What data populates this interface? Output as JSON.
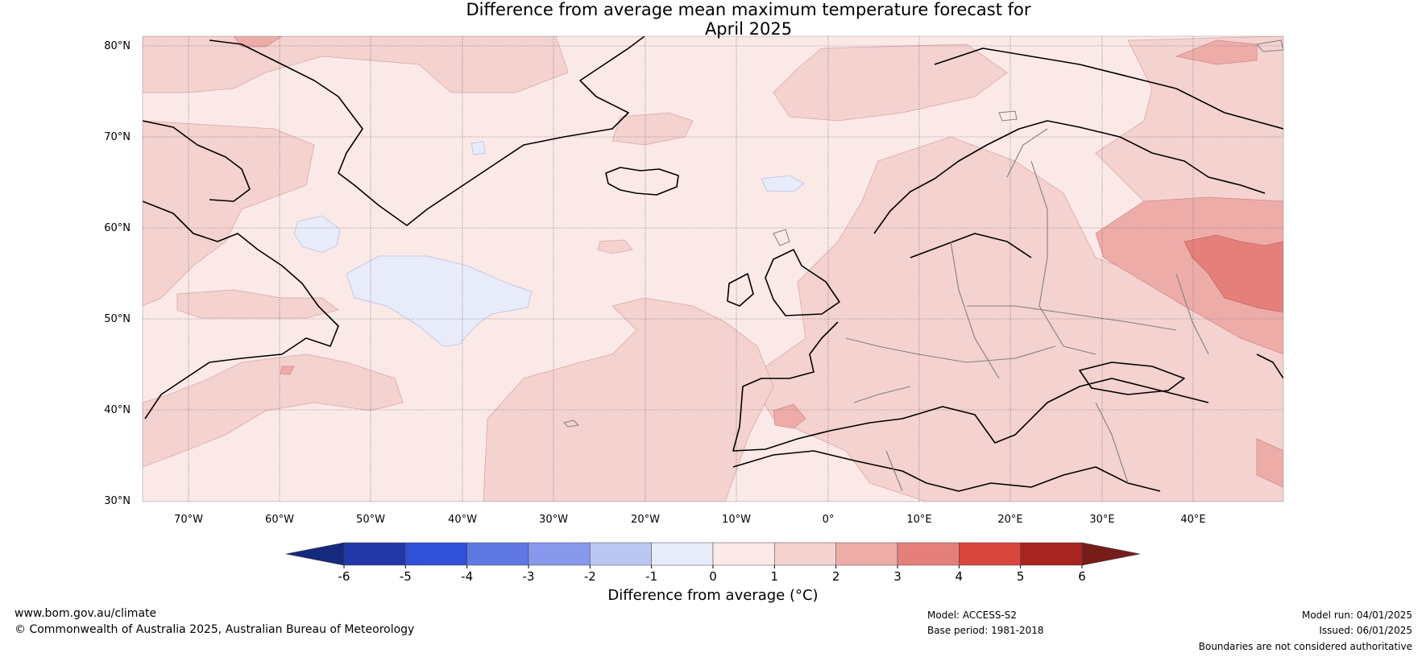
{
  "title_line1": "Difference from average mean maximum temperature forecast for",
  "title_line2": "April 2025",
  "lat_labels": [
    "80°N",
    "70°N",
    "60°N",
    "50°N",
    "40°N",
    "30°N"
  ],
  "lon_labels": [
    "70°W",
    "60°W",
    "50°W",
    "40°W",
    "30°W",
    "20°W",
    "10°W",
    "0°",
    "10°E",
    "20°E",
    "30°E",
    "40°E"
  ],
  "colorbar": {
    "ticks": [
      "-6",
      "-5",
      "-4",
      "-3",
      "-2",
      "-1",
      "0",
      "1",
      "2",
      "3",
      "4",
      "5",
      "6"
    ],
    "colors": [
      "#2238a8",
      "#3050d8",
      "#5f78e4",
      "#8898ea",
      "#bcc6f2",
      "#e8ecfa",
      "#fbe9e8",
      "#f4d2d0",
      "#eeaca9",
      "#e57f79",
      "#d9463e",
      "#a82420"
    ],
    "low_extend_color": "#152a7e",
    "high_extend_color": "#781c1a",
    "label": "Difference from average (°C)"
  },
  "footer": {
    "url": "www.bom.gov.au/climate",
    "copyright": "© Commonwealth of Australia 2025, Australian Bureau of Meteorology",
    "model": "Model: ACCESS-S2",
    "base_period": "Base period: 1981-2018",
    "model_run": "Model run: 04/01/2025",
    "issued": "Issued: 06/01/2025",
    "disclaimer": "Boundaries are not considered authoritative"
  }
}
